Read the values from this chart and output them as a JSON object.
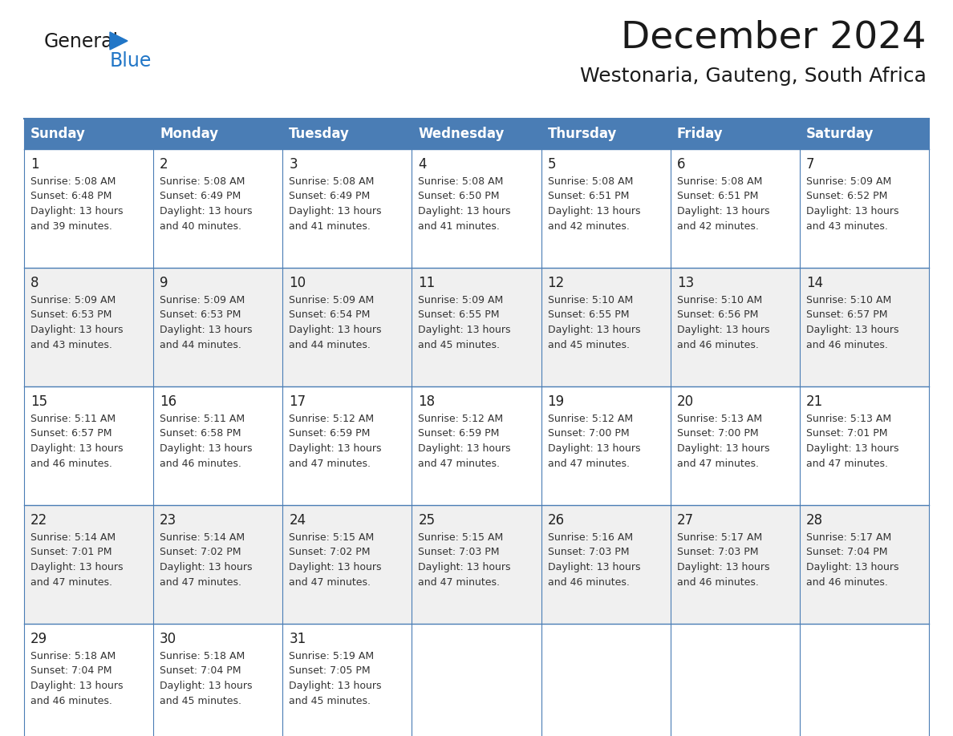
{
  "title": "December 2024",
  "subtitle": "Westonaria, Gauteng, South Africa",
  "header_color": "#4A7DB5",
  "header_text_color": "#FFFFFF",
  "cell_bg_color_even": "#FFFFFF",
  "cell_bg_color_odd": "#F0F0F0",
  "border_color": "#4A7DB5",
  "text_color": "#333333",
  "day_num_color": "#222222",
  "logo_general_color": "#1a1a1a",
  "logo_blue_color": "#2176C7",
  "logo_triangle_color": "#2176C7",
  "day_headers": [
    "Sunday",
    "Monday",
    "Tuesday",
    "Wednesday",
    "Thursday",
    "Friday",
    "Saturday"
  ],
  "weeks": [
    [
      {
        "day": 1,
        "sunrise": "5:08 AM",
        "sunset": "6:48 PM",
        "daylight_hrs": 13,
        "daylight_min": "39 minutes."
      },
      {
        "day": 2,
        "sunrise": "5:08 AM",
        "sunset": "6:49 PM",
        "daylight_hrs": 13,
        "daylight_min": "40 minutes."
      },
      {
        "day": 3,
        "sunrise": "5:08 AM",
        "sunset": "6:49 PM",
        "daylight_hrs": 13,
        "daylight_min": "41 minutes."
      },
      {
        "day": 4,
        "sunrise": "5:08 AM",
        "sunset": "6:50 PM",
        "daylight_hrs": 13,
        "daylight_min": "41 minutes."
      },
      {
        "day": 5,
        "sunrise": "5:08 AM",
        "sunset": "6:51 PM",
        "daylight_hrs": 13,
        "daylight_min": "42 minutes."
      },
      {
        "day": 6,
        "sunrise": "5:08 AM",
        "sunset": "6:51 PM",
        "daylight_hrs": 13,
        "daylight_min": "42 minutes."
      },
      {
        "day": 7,
        "sunrise": "5:09 AM",
        "sunset": "6:52 PM",
        "daylight_hrs": 13,
        "daylight_min": "43 minutes."
      }
    ],
    [
      {
        "day": 8,
        "sunrise": "5:09 AM",
        "sunset": "6:53 PM",
        "daylight_hrs": 13,
        "daylight_min": "43 minutes."
      },
      {
        "day": 9,
        "sunrise": "5:09 AM",
        "sunset": "6:53 PM",
        "daylight_hrs": 13,
        "daylight_min": "44 minutes."
      },
      {
        "day": 10,
        "sunrise": "5:09 AM",
        "sunset": "6:54 PM",
        "daylight_hrs": 13,
        "daylight_min": "44 minutes."
      },
      {
        "day": 11,
        "sunrise": "5:09 AM",
        "sunset": "6:55 PM",
        "daylight_hrs": 13,
        "daylight_min": "45 minutes."
      },
      {
        "day": 12,
        "sunrise": "5:10 AM",
        "sunset": "6:55 PM",
        "daylight_hrs": 13,
        "daylight_min": "45 minutes."
      },
      {
        "day": 13,
        "sunrise": "5:10 AM",
        "sunset": "6:56 PM",
        "daylight_hrs": 13,
        "daylight_min": "46 minutes."
      },
      {
        "day": 14,
        "sunrise": "5:10 AM",
        "sunset": "6:57 PM",
        "daylight_hrs": 13,
        "daylight_min": "46 minutes."
      }
    ],
    [
      {
        "day": 15,
        "sunrise": "5:11 AM",
        "sunset": "6:57 PM",
        "daylight_hrs": 13,
        "daylight_min": "46 minutes."
      },
      {
        "day": 16,
        "sunrise": "5:11 AM",
        "sunset": "6:58 PM",
        "daylight_hrs": 13,
        "daylight_min": "46 minutes."
      },
      {
        "day": 17,
        "sunrise": "5:12 AM",
        "sunset": "6:59 PM",
        "daylight_hrs": 13,
        "daylight_min": "47 minutes."
      },
      {
        "day": 18,
        "sunrise": "5:12 AM",
        "sunset": "6:59 PM",
        "daylight_hrs": 13,
        "daylight_min": "47 minutes."
      },
      {
        "day": 19,
        "sunrise": "5:12 AM",
        "sunset": "7:00 PM",
        "daylight_hrs": 13,
        "daylight_min": "47 minutes."
      },
      {
        "day": 20,
        "sunrise": "5:13 AM",
        "sunset": "7:00 PM",
        "daylight_hrs": 13,
        "daylight_min": "47 minutes."
      },
      {
        "day": 21,
        "sunrise": "5:13 AM",
        "sunset": "7:01 PM",
        "daylight_hrs": 13,
        "daylight_min": "47 minutes."
      }
    ],
    [
      {
        "day": 22,
        "sunrise": "5:14 AM",
        "sunset": "7:01 PM",
        "daylight_hrs": 13,
        "daylight_min": "47 minutes."
      },
      {
        "day": 23,
        "sunrise": "5:14 AM",
        "sunset": "7:02 PM",
        "daylight_hrs": 13,
        "daylight_min": "47 minutes."
      },
      {
        "day": 24,
        "sunrise": "5:15 AM",
        "sunset": "7:02 PM",
        "daylight_hrs": 13,
        "daylight_min": "47 minutes."
      },
      {
        "day": 25,
        "sunrise": "5:15 AM",
        "sunset": "7:03 PM",
        "daylight_hrs": 13,
        "daylight_min": "47 minutes."
      },
      {
        "day": 26,
        "sunrise": "5:16 AM",
        "sunset": "7:03 PM",
        "daylight_hrs": 13,
        "daylight_min": "46 minutes."
      },
      {
        "day": 27,
        "sunrise": "5:17 AM",
        "sunset": "7:03 PM",
        "daylight_hrs": 13,
        "daylight_min": "46 minutes."
      },
      {
        "day": 28,
        "sunrise": "5:17 AM",
        "sunset": "7:04 PM",
        "daylight_hrs": 13,
        "daylight_min": "46 minutes."
      }
    ],
    [
      {
        "day": 29,
        "sunrise": "5:18 AM",
        "sunset": "7:04 PM",
        "daylight_hrs": 13,
        "daylight_min": "46 minutes."
      },
      {
        "day": 30,
        "sunrise": "5:18 AM",
        "sunset": "7:04 PM",
        "daylight_hrs": 13,
        "daylight_min": "45 minutes."
      },
      {
        "day": 31,
        "sunrise": "5:19 AM",
        "sunset": "7:05 PM",
        "daylight_hrs": 13,
        "daylight_min": "45 minutes."
      },
      null,
      null,
      null,
      null
    ]
  ],
  "title_fontsize": 34,
  "subtitle_fontsize": 18,
  "header_fontsize": 12,
  "day_num_fontsize": 12,
  "cell_text_fontsize": 9,
  "logo_general_fontsize": 17,
  "logo_blue_fontsize": 17
}
